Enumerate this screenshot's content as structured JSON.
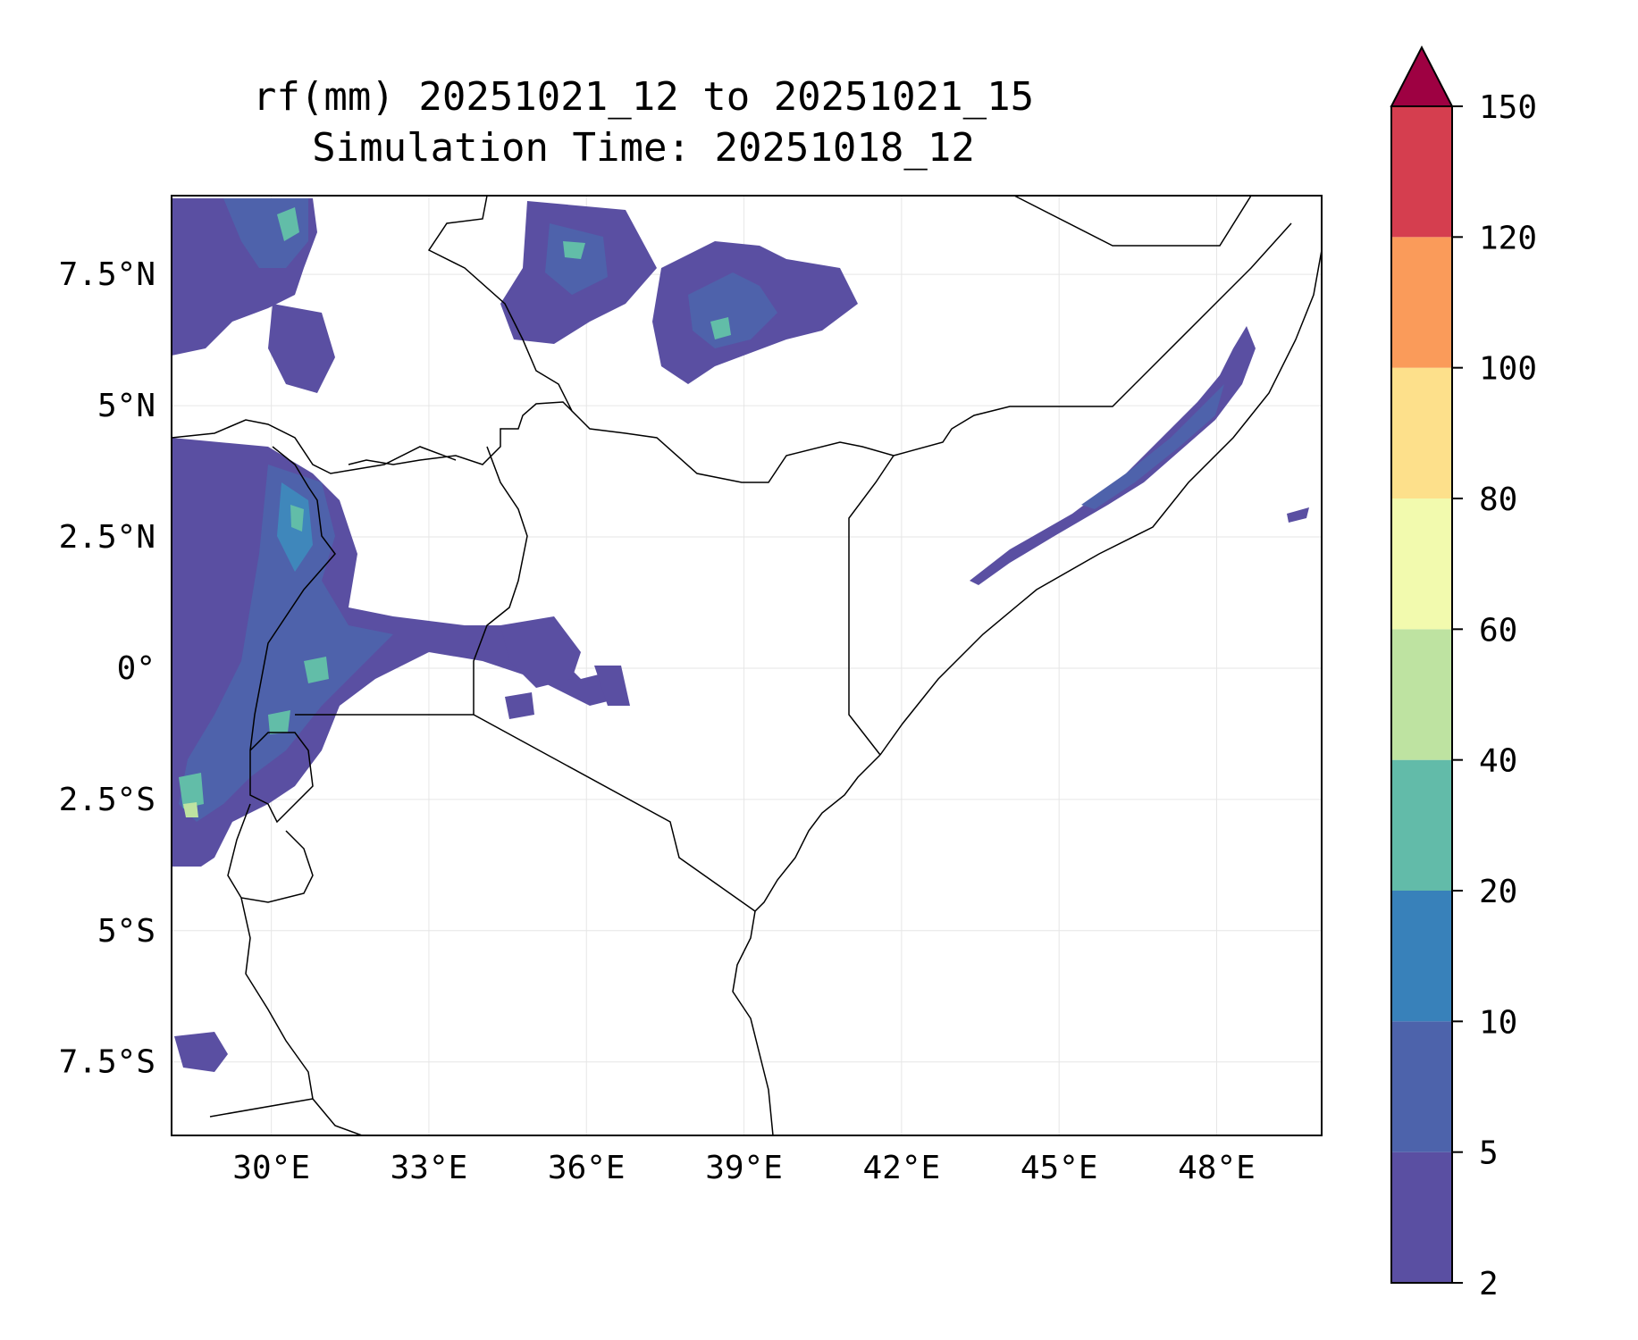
{
  "title": {
    "line1": "rf(mm) 20251021_12 to 20251021_15",
    "line2": "Simulation Time: 20251018_12"
  },
  "map": {
    "lon_range": [
      28.1,
      50.0
    ],
    "lat_range": [
      -8.9,
      9.0
    ],
    "x_ticks": [
      {
        "value": 30,
        "label": "30°E"
      },
      {
        "value": 33,
        "label": "33°E"
      },
      {
        "value": 36,
        "label": "36°E"
      },
      {
        "value": 39,
        "label": "39°E"
      },
      {
        "value": 42,
        "label": "42°E"
      },
      {
        "value": 45,
        "label": "45°E"
      },
      {
        "value": 48,
        "label": "48°E"
      }
    ],
    "y_ticks": [
      {
        "value": 7.5,
        "label": "7.5°N"
      },
      {
        "value": 5,
        "label": "5°N"
      },
      {
        "value": 2.5,
        "label": "2.5°N"
      },
      {
        "value": 0,
        "label": "0°"
      },
      {
        "value": -2.5,
        "label": "2.5°S"
      },
      {
        "value": -5,
        "label": "5°S"
      },
      {
        "value": -7.5,
        "label": "7.5°S"
      }
    ],
    "grid": true,
    "colors": {
      "border": "#000000",
      "grid": "#e6e6e6",
      "rain_light": "#5a4fa2",
      "rain_mid": "#4e62ab",
      "rain_high": "#3f87bb",
      "rain_peak": "#62bda8",
      "rain_max": "#bee3a1"
    }
  },
  "colorbar": {
    "levels": [
      {
        "value": "2",
        "color": "#5a4fa2"
      },
      {
        "value": "5",
        "color": "#4d63ab"
      },
      {
        "value": "10",
        "color": "#3881ba"
      },
      {
        "value": "20",
        "color": "#62bba9"
      },
      {
        "value": "40",
        "color": "#bee3a1"
      },
      {
        "value": "60",
        "color": "#f2faae"
      },
      {
        "value": "80",
        "color": "#fde08b"
      },
      {
        "value": "100",
        "color": "#fa9b5a"
      },
      {
        "value": "120",
        "color": "#d53e4f"
      },
      {
        "value": "150",
        "color": "#9e0142"
      }
    ],
    "extend": "max"
  }
}
